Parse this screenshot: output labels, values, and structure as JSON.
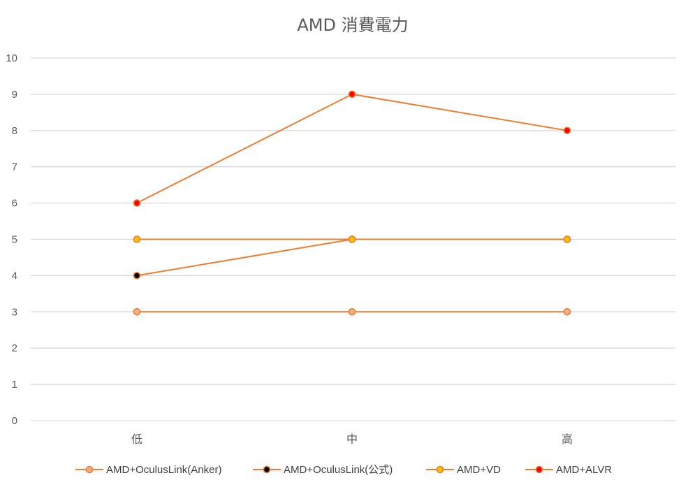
{
  "chart_data": {
    "type": "line",
    "title": "AMD 消費電力",
    "categories": [
      "低",
      "中",
      "高"
    ],
    "ylim": [
      0,
      10
    ],
    "yticks": [
      0,
      1,
      2,
      3,
      4,
      5,
      6,
      7,
      8,
      9,
      10
    ],
    "grid": true,
    "legend_position": "bottom",
    "series": [
      {
        "name": "AMD+OculusLink(Anker)",
        "values": [
          3,
          3,
          3
        ],
        "line_color": "#ED7D31",
        "marker_fill": "#F4B183",
        "marker_edge": "#ED7D31"
      },
      {
        "name": "AMD+OculusLink(公式)",
        "values": [
          4,
          5,
          5
        ],
        "line_color": "#ED7D31",
        "marker_fill": "#000000",
        "marker_edge": "#ED7D31"
      },
      {
        "name": "AMD+VD",
        "values": [
          5,
          5,
          5
        ],
        "line_color": "#ED7D31",
        "marker_fill": "#FFC000",
        "marker_edge": "#ED7D31"
      },
      {
        "name": "AMD+ALVR",
        "values": [
          6,
          9,
          8
        ],
        "line_color": "#ED7D31",
        "marker_fill": "#FF0000",
        "marker_edge": "#ED7D31"
      }
    ]
  }
}
